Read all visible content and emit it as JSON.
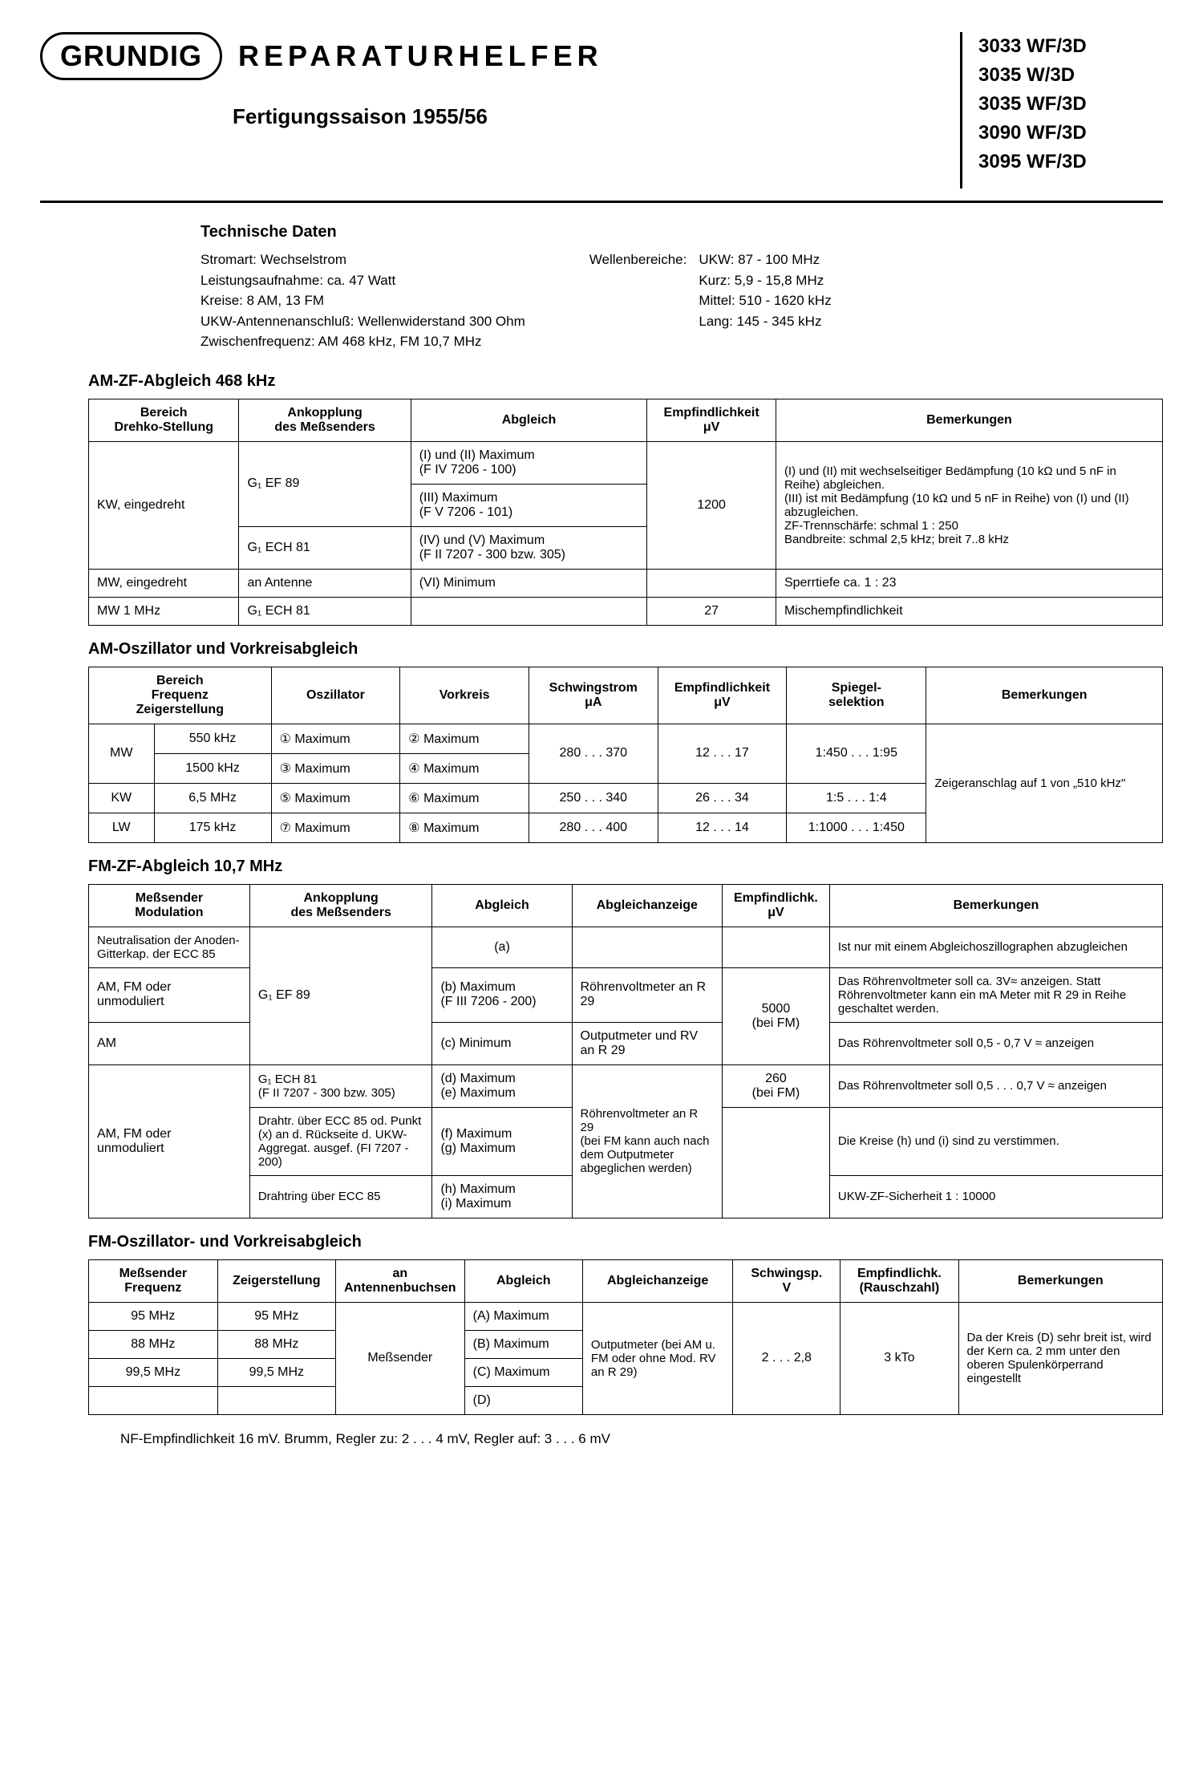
{
  "header": {
    "logo": "GRUNDIG",
    "title": "REPARATURHELFER",
    "subtitle": "Fertigungssaison 1955/56",
    "models": [
      "3033 WF/3D",
      "3035 W/3D",
      "3035 WF/3D",
      "3090 WF/3D",
      "3095 WF/3D"
    ]
  },
  "tech": {
    "heading": "Technische Daten",
    "left": [
      "Stromart: Wechselstrom",
      "Leistungsaufnahme: ca. 47 Watt",
      "Kreise: 8 AM, 13 FM",
      "UKW-Antennenanschluß: Wellenwiderstand 300 Ohm",
      "Zwischenfrequenz: AM 468 kHz, FM 10,7 MHz"
    ],
    "right_label": "Wellenbereiche:",
    "right": [
      "UKW: 87 - 100 MHz",
      "Kurz: 5,9 - 15,8 MHz",
      "Mittel: 510 - 1620 kHz",
      "Lang: 145 - 345 kHz"
    ]
  },
  "table1": {
    "title": "AM-ZF-Abgleich 468 kHz",
    "headers": [
      "Bereich\nDrehko-Stellung",
      "Ankopplung\ndes Meßsenders",
      "Abgleich",
      "Empfindlichkeit\nμV",
      "Bemerkungen"
    ],
    "r1c1": "KW, eingedreht",
    "r1c2a": "G₁ EF 89",
    "r1c2b": "G₁ ECH 81",
    "r1c3a": "(I) und (II) Maximum\n(F IV 7206 - 100)",
    "r1c3b": "(III) Maximum\n(F V 7206 - 101)",
    "r1c3c": "(IV) und (V) Maximum\n(F II 7207 - 300 bzw. 305)",
    "r1c4": "1200",
    "r1c5": "(I) und (II) mit wechselseitiger Bedämpfung (10 kΩ und 5 nF in Reihe) abgleichen.\n(III) ist mit Bedämpfung (10 kΩ und 5 nF in Reihe) von (I) und (II) abzugleichen.\nZF-Trennschärfe: schmal 1 : 250\nBandbreite: schmal 2,5 kHz; breit 7..8 kHz",
    "r2c1": "MW, eingedreht",
    "r2c2": "an Antenne",
    "r2c3": "(VI) Minimum",
    "r2c5": "Sperrtiefe ca. 1 : 23",
    "r3c1": "MW 1 MHz",
    "r3c2": "G₁ ECH 81",
    "r3c4": "27",
    "r3c5": "Mischempfindlichkeit"
  },
  "table2": {
    "title": "AM-Oszillator und Vorkreisabgleich",
    "headers": [
      "Bereich\nFrequenz\nZeigerstellung",
      "Oszillator",
      "Vorkreis",
      "Schwingstrom\nμA",
      "Empfindlichkeit\nμV",
      "Spiegel-\nselektion",
      "Bemerkungen"
    ],
    "mw": "MW",
    "r1f": "550 kHz",
    "r1o": "① Maximum",
    "r1v": "② Maximum",
    "r2f": "1500 kHz",
    "r2o": "③ Maximum",
    "r2v": "④ Maximum",
    "r12s": "280 . . . 370",
    "r12e": "12 . . . 17",
    "r12sp": "1:450 . . . 1:95",
    "kw": "KW",
    "r3f": "6,5 MHz",
    "r3o": "⑤ Maximum",
    "r3v": "⑥ Maximum",
    "r3s": "250 . . . 340",
    "r3e": "26 . . . 34",
    "r3sp": "1:5 . . . 1:4",
    "lw": "LW",
    "r4f": "175 kHz",
    "r4o": "⑦ Maximum",
    "r4v": "⑧ Maximum",
    "r4s": "280 . . . 400",
    "r4e": "12 . . . 14",
    "r4sp": "1:1000 . . . 1:450",
    "note": "Zeigeranschlag auf 1 von „510 kHz\""
  },
  "table3": {
    "title": "FM-ZF-Abgleich 10,7 MHz",
    "headers": [
      "Meßsender\nModulation",
      "Ankopplung\ndes Meßsenders",
      "Abgleich",
      "Abgleichanzeige",
      "Empfindlichk.\nμV",
      "Bemerkungen"
    ],
    "r1m": "Neutralisation der Anoden-Gitterkap. der ECC 85",
    "r1a": "(a)",
    "r1b": "Ist nur mit einem Abgleichoszillographen abzugleichen",
    "r2m": "AM, FM oder unmoduliert",
    "r2ank": "G₁ EF 89",
    "r2a": "(b) Maximum\n(F III 7206 - 200)",
    "r2az": "Röhrenvoltmeter an R 29",
    "r2e": "5000\n(bei FM)",
    "r2b": "Das Röhrenvoltmeter soll ca. 3V≈ anzeigen. Statt Röhrenvoltmeter kann ein mA Meter mit R 29 in Reihe geschaltet werden.",
    "r3m": "AM",
    "r3a": "(c) Minimum",
    "r3az": "Outputmeter und RV an R 29",
    "r3b": "Das Röhrenvoltmeter soll 0,5 - 0,7 V ≈ anzeigen",
    "r4m": "AM, FM oder unmoduliert",
    "r4ank1": "G₁ ECH 81\n(F II 7207 - 300 bzw. 305)",
    "r4a1": "(d) Maximum\n(e) Maximum",
    "r4az": "Röhrenvoltmeter an R 29\n(bei FM kann auch nach dem Outputmeter abgeglichen werden)",
    "r4e": "260\n(bei FM)",
    "r4b1": "Das Röhrenvoltmeter soll 0,5 . . . 0,7 V ≈ anzeigen",
    "r4ank2": "Drahtr. über ECC 85 od. Punkt (x) an d. Rückseite d. UKW-Aggregat. ausgef. (FI 7207 - 200)",
    "r4a2": "(f) Maximum\n(g) Maximum",
    "r4b2": "Die Kreise (h) und (i) sind zu verstimmen.",
    "r4ank3": "Drahtring über ECC 85",
    "r4a3": "(h) Maximum\n(i) Maximum",
    "r4b3": "UKW-ZF-Sicherheit 1 : 10000"
  },
  "table4": {
    "title": "FM-Oszillator- und Vorkreisabgleich",
    "headers": [
      "Meßsender\nFrequenz",
      "Zeigerstellung",
      "an\nAntennenbuchsen",
      "Abgleich",
      "Abgleichanzeige",
      "Schwingsp.\nV",
      "Empfindlichk.\n(Rauschzahl)",
      "Bemerkungen"
    ],
    "r1f": "95 MHz",
    "r1z": "95 MHz",
    "r1a": "(A) Maximum",
    "r2f": "88 MHz",
    "r2z": "88 MHz",
    "r2a": "(B) Maximum",
    "r3f": "99,5 MHz",
    "r3z": "99,5 MHz",
    "r3a": "(C) Maximum",
    "r4a": "(D)",
    "ant": "Meßsender",
    "az": "Outputmeter (bei AM u. FM oder ohne Mod. RV an R 29)",
    "sv": "2 . . . 2,8",
    "emp": "3 kTo",
    "bem": "Da der Kreis (D) sehr breit ist, wird der Kern ca. 2 mm unter den oberen Spulenkörperrand eingestellt"
  },
  "footer": "NF-Empfindlichkeit 16 mV. Brumm, Regler zu: 2 . . . 4 mV, Regler auf: 3 . . . 6 mV"
}
